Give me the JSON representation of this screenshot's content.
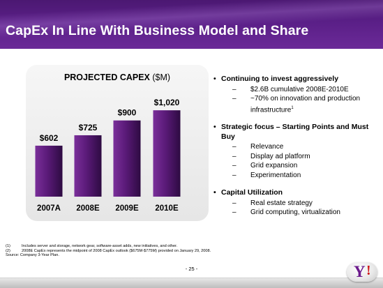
{
  "header": {
    "title": "CapEx In Line With Business Model and Share",
    "background": "#5a1f87"
  },
  "chart_title": {
    "main": "PROJECTED CAPEX ",
    "unit": "($M)"
  },
  "chart_data": {
    "type": "bar",
    "title": "PROJECTED CAPEX ($M)",
    "categories": [
      "2007A",
      "2008E",
      "2009E",
      "2010E"
    ],
    "values": [
      602,
      725,
      900,
      1020
    ],
    "labels": [
      "$602",
      "$725",
      "$900",
      "$1,020"
    ],
    "ylim": [
      0,
      1120
    ],
    "bar_color": "#4a1560",
    "grid": false
  },
  "bullets": [
    {
      "label": "Continuing to invest aggressively",
      "subs": [
        "$2.6B cumulative 2008E-2010E",
        "~70% on innovation and production infrastructure"
      ],
      "footnote_mark": "1"
    },
    {
      "label": "Strategic focus – Starting Points and Must Buy",
      "subs": [
        "Relevance",
        "Display ad platform",
        "Grid expansion",
        "Experimentation"
      ]
    },
    {
      "label": "Capital Utilization",
      "subs": [
        "Real estate strategy",
        "Grid computing, virtualization"
      ]
    }
  ],
  "dash": "–",
  "footnotes": [
    {
      "num": "(1)",
      "text": "Includes server and storage, network gear, software-asset adds, new initiatives, and other."
    },
    {
      "num": "(2)",
      "text": "2008E CapEx represents the midpoint of 2008 CapEx outlook ($675M-$775M) provided on January 29, 2008."
    },
    {
      "num": "",
      "text": "Source: Company 3-Year Plan."
    }
  ],
  "page_number": "- 25 -",
  "logo": {
    "letter": "Y",
    "mark": "!",
    "name": "yahoo-logo"
  }
}
